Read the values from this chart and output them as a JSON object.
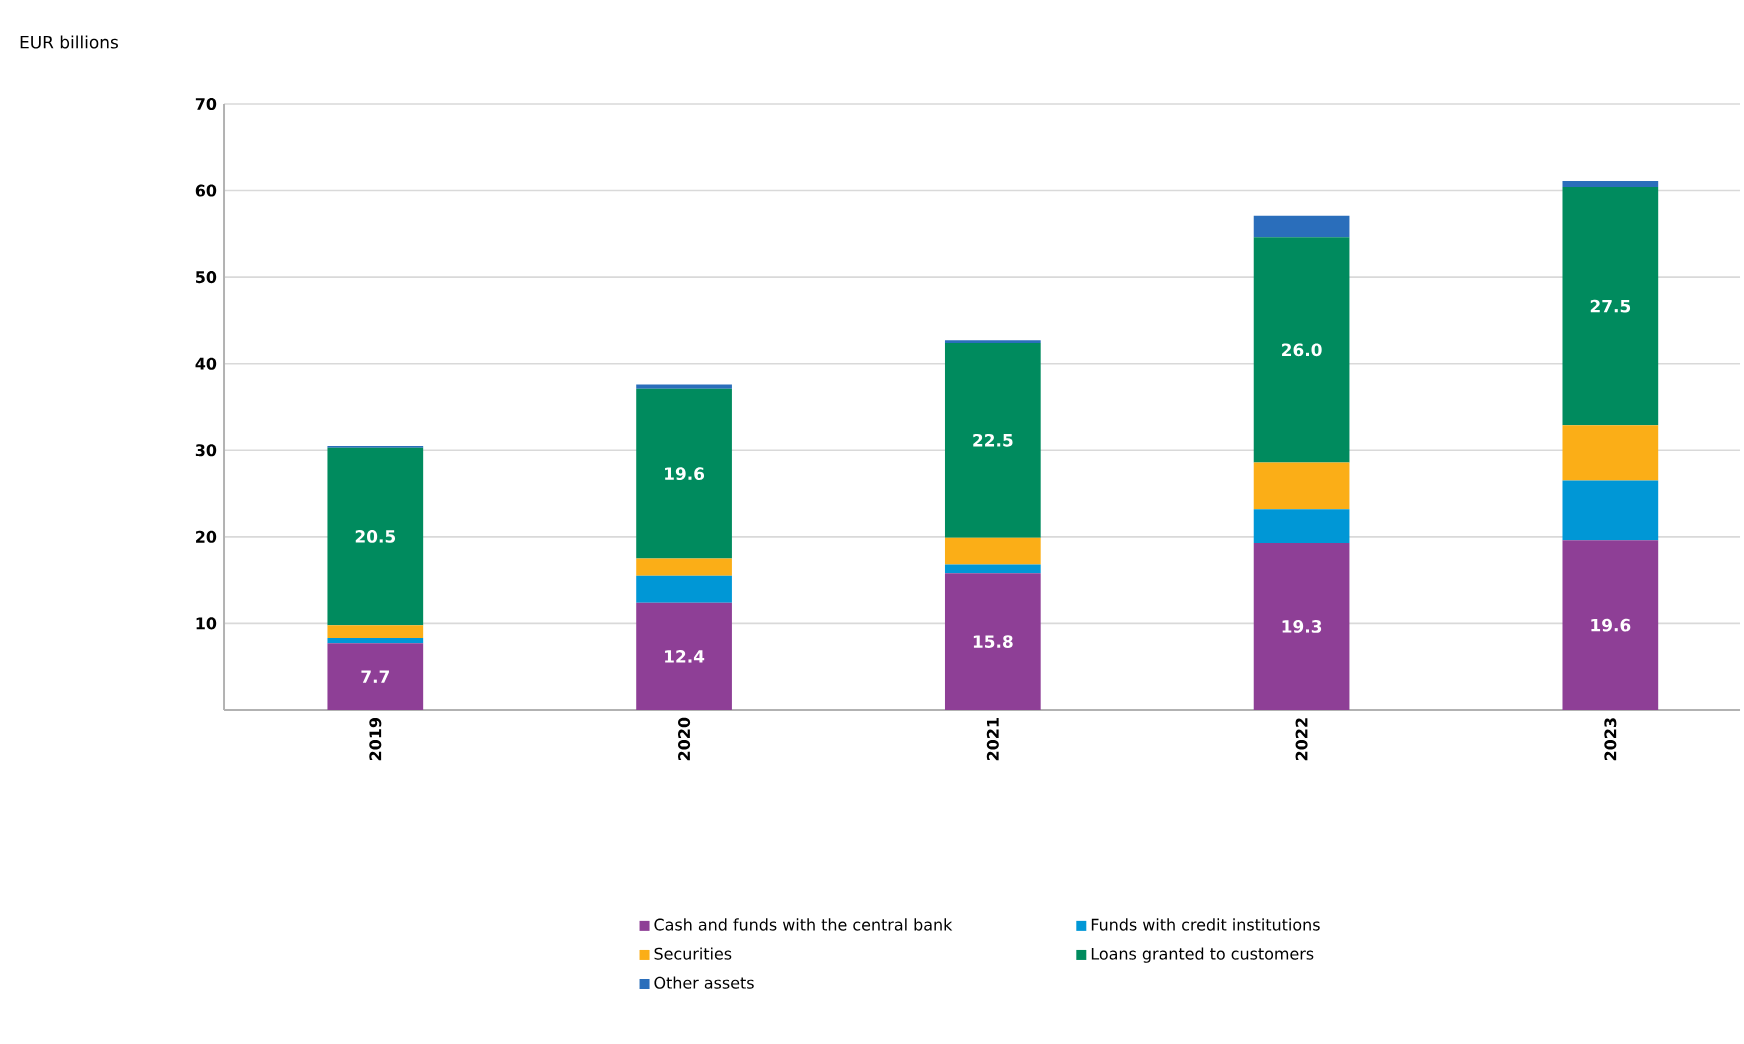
{
  "chart_data": {
    "type": "bar",
    "stacked": true,
    "annotations": [
      "EUR billions"
    ],
    "categories": [
      "2019",
      "2020",
      "2021",
      "2022",
      "2023"
    ],
    "series": [
      {
        "name": "Cash and funds with the central bank",
        "color": "#8e3f96",
        "values": [
          7.7,
          12.4,
          15.8,
          19.3,
          19.6
        ],
        "value_labels": [
          "7.7",
          "12.4",
          "15.8",
          "19.3",
          "19.6"
        ]
      },
      {
        "name": "Funds with credit institutions",
        "color": "#0097d6",
        "values": [
          0.6,
          3.1,
          1.0,
          3.9,
          6.9
        ]
      },
      {
        "name": "Securities",
        "color": "#fbae17",
        "values": [
          1.5,
          2.0,
          3.1,
          5.4,
          6.4
        ]
      },
      {
        "name": "Loans granted to customers",
        "color": "#008b5e",
        "values": [
          20.5,
          19.6,
          22.5,
          26.0,
          27.5
        ],
        "value_labels": [
          "20.5",
          "19.6",
          "22.5",
          "26.0",
          "27.5"
        ]
      },
      {
        "name": "Other assets",
        "color": "#2a6ebb",
        "values": [
          0.2,
          0.5,
          0.3,
          2.5,
          0.7
        ]
      }
    ],
    "ylim": [
      0,
      70
    ],
    "yticks": [
      10,
      20,
      30,
      40,
      50,
      60,
      70
    ],
    "grid": "y",
    "legend": "bottom"
  }
}
